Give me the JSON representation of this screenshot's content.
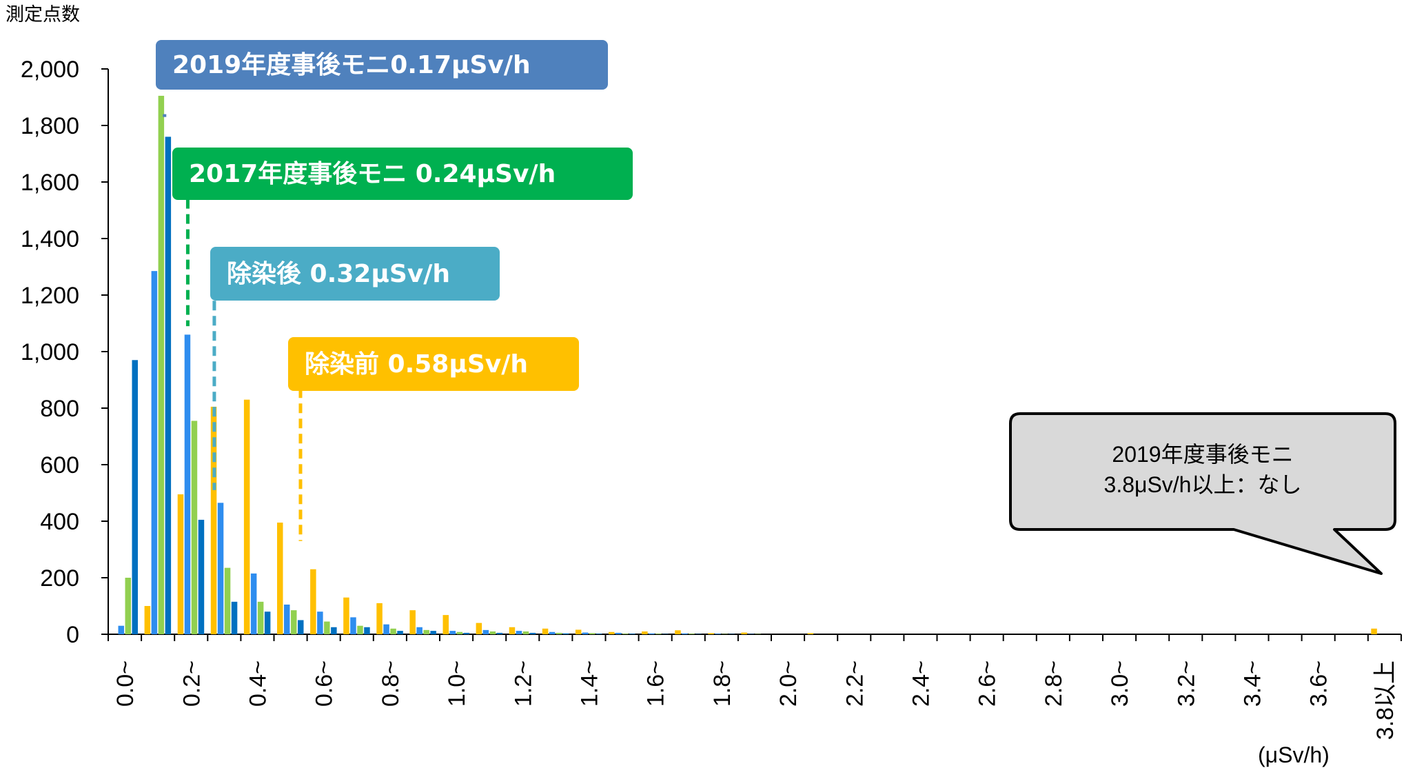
{
  "chart_data": {
    "type": "bar",
    "ylabel": "測定点数",
    "unit_label": "(μSv/h)",
    "ylim": [
      0,
      2000
    ],
    "y_ticks": [
      "0",
      "200",
      "400",
      "600",
      "800",
      "1,000",
      "1,200",
      "1,400",
      "1,600",
      "1,800",
      "2,000"
    ],
    "categories": [
      "0.0~",
      "0.1",
      "0.2~",
      "0.3",
      "0.4~",
      "0.5",
      "0.6~",
      "0.7",
      "0.8~",
      "0.9",
      "1.0~",
      "1.1",
      "1.2~",
      "1.3",
      "1.4~",
      "1.5",
      "1.6~",
      "1.7",
      "1.8~",
      "1.9",
      "2.0~",
      "2.1",
      "2.2~",
      "2.3",
      "2.4~",
      "2.5",
      "2.6~",
      "2.7",
      "2.8~",
      "2.9",
      "3.0~",
      "3.1",
      "3.2~",
      "3.3",
      "3.4~",
      "3.5",
      "3.6~",
      "3.7",
      "3.8以上"
    ],
    "category_label_shown": [
      true,
      false,
      true,
      false,
      true,
      false,
      true,
      false,
      true,
      false,
      true,
      false,
      true,
      false,
      true,
      false,
      true,
      false,
      true,
      false,
      true,
      false,
      true,
      false,
      true,
      false,
      true,
      false,
      true,
      false,
      true,
      false,
      true,
      false,
      true,
      false,
      true,
      false,
      true
    ],
    "series": [
      {
        "color": "#FFC000",
        "values": [
          0,
          100,
          495,
          805,
          830,
          395,
          230,
          130,
          110,
          85,
          68,
          40,
          25,
          20,
          16,
          8,
          10,
          14,
          4,
          6,
          0,
          4,
          0,
          0,
          0,
          0,
          0,
          0,
          0,
          0,
          0,
          0,
          0,
          0,
          0,
          0,
          0,
          0,
          20
        ]
      },
      {
        "color": "#2E8DEF",
        "values": [
          30,
          1285,
          1060,
          465,
          215,
          105,
          80,
          60,
          35,
          25,
          12,
          15,
          12,
          8,
          6,
          5,
          3,
          3,
          2,
          1,
          0,
          0,
          0,
          0,
          0,
          0,
          0,
          0,
          0,
          0,
          0,
          0,
          0,
          0,
          0,
          0,
          0,
          0,
          0
        ]
      },
      {
        "color": "#92D050",
        "values": [
          200,
          1905,
          755,
          235,
          115,
          85,
          45,
          30,
          20,
          15,
          8,
          10,
          10,
          5,
          4,
          2,
          2,
          2,
          1,
          1,
          0,
          0,
          0,
          0,
          0,
          0,
          0,
          0,
          0,
          0,
          0,
          0,
          0,
          0,
          0,
          0,
          0,
          0,
          0
        ]
      },
      {
        "color": "#0070C0",
        "values": [
          970,
          1760,
          405,
          115,
          80,
          50,
          25,
          25,
          12,
          12,
          5,
          5,
          5,
          3,
          2,
          2,
          1,
          1,
          1,
          0,
          0,
          0,
          0,
          0,
          0,
          0,
          0,
          0,
          0,
          0,
          0,
          0,
          0,
          0,
          0,
          0,
          0,
          0,
          0
        ]
      }
    ],
    "annotations": [
      {
        "text": "2019年度事後モニ0.17μSv/h",
        "color": "#4F81BD",
        "marker_x": 0.17,
        "marker_top": 1840,
        "marker_bottom": 1830
      },
      {
        "text": "2017年度事後モニ 0.24μSv/h",
        "color": "#00B050",
        "marker_x": 0.24,
        "marker_top": 1540,
        "marker_bottom": 1090
      },
      {
        "text": "除染後 0.32μSv/h",
        "color": "#4BACC6",
        "marker_x": 0.32,
        "marker_top": 1180,
        "marker_bottom": 510
      },
      {
        "text": "除染前 0.58μSv/h",
        "color": "#FFC000",
        "marker_x": 0.58,
        "marker_top": 870,
        "marker_bottom": 330
      }
    ],
    "callout": {
      "lines": [
        "2019年度事後モニ",
        "3.8μSv/h以上：なし"
      ],
      "fill": "#D9D9D9",
      "border": "#000000"
    },
    "grid": false,
    "legend": "none"
  }
}
